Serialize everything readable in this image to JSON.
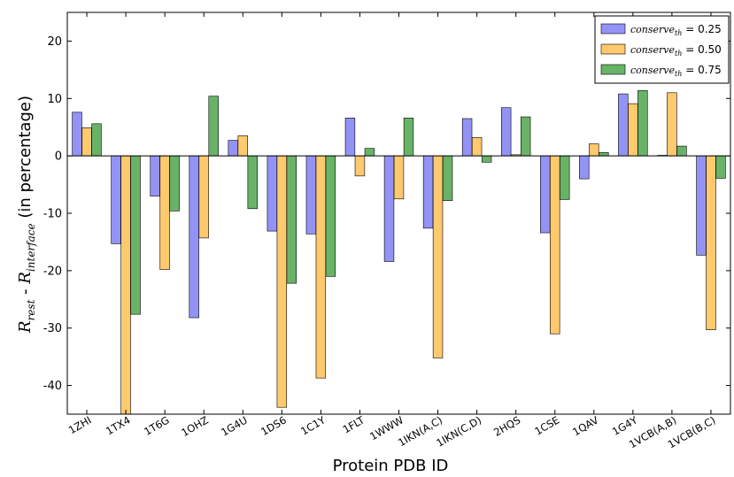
{
  "chart_data": {
    "type": "bar",
    "title": "",
    "xlabel": "Protein PDB ID",
    "ylabel": {
      "r1": "R",
      "sub1": "rest",
      "mid": " - ",
      "r2": "R",
      "sub2": "interface",
      "suffix": " (in percentage)"
    },
    "ylim": [
      -45,
      25
    ],
    "yticks": [
      -40,
      -30,
      -20,
      -10,
      0,
      10,
      20
    ],
    "grid": false,
    "legend_position": "top-right",
    "categories": [
      "1ZHI",
      "1TX4",
      "1T6G",
      "1OHZ",
      "1G4U",
      "1DS6",
      "1C1Y",
      "1FLT",
      "1WWW",
      "1IKN(A,C)",
      "1IKN(C,D)",
      "2HQS",
      "1CSE",
      "1QAV",
      "1G4Y",
      "1VCB(A,B)",
      "1VCB(B,C)"
    ],
    "series": [
      {
        "legend": {
          "var": "conserve",
          "sub": "th",
          "value": " = 0.25"
        },
        "color": "#8080f5",
        "values": [
          7.6,
          -15.3,
          -7.0,
          -28.2,
          2.7,
          -13.1,
          -13.6,
          6.6,
          -18.4,
          -12.6,
          6.5,
          8.4,
          -13.4,
          -4.0,
          10.8,
          0.1,
          -17.3
        ]
      },
      {
        "legend": {
          "var": "conserve",
          "sub": "th",
          "value": " = 0.50"
        },
        "color": "#ffbf55",
        "values": [
          4.9,
          -45.0,
          -19.8,
          -14.3,
          3.5,
          -43.8,
          -38.7,
          -3.5,
          -7.5,
          -35.2,
          3.2,
          0.2,
          -31.0,
          2.1,
          9.1,
          11.0,
          -30.3
        ]
      },
      {
        "legend": {
          "var": "conserve",
          "sub": "th",
          "value": " = 0.75"
        },
        "color": "#4da64d",
        "values": [
          5.6,
          -27.6,
          -9.6,
          10.4,
          -9.2,
          -22.2,
          -21.0,
          1.3,
          6.6,
          -7.8,
          -1.1,
          6.8,
          -7.6,
          0.6,
          11.4,
          1.7,
          -3.9
        ]
      }
    ]
  }
}
